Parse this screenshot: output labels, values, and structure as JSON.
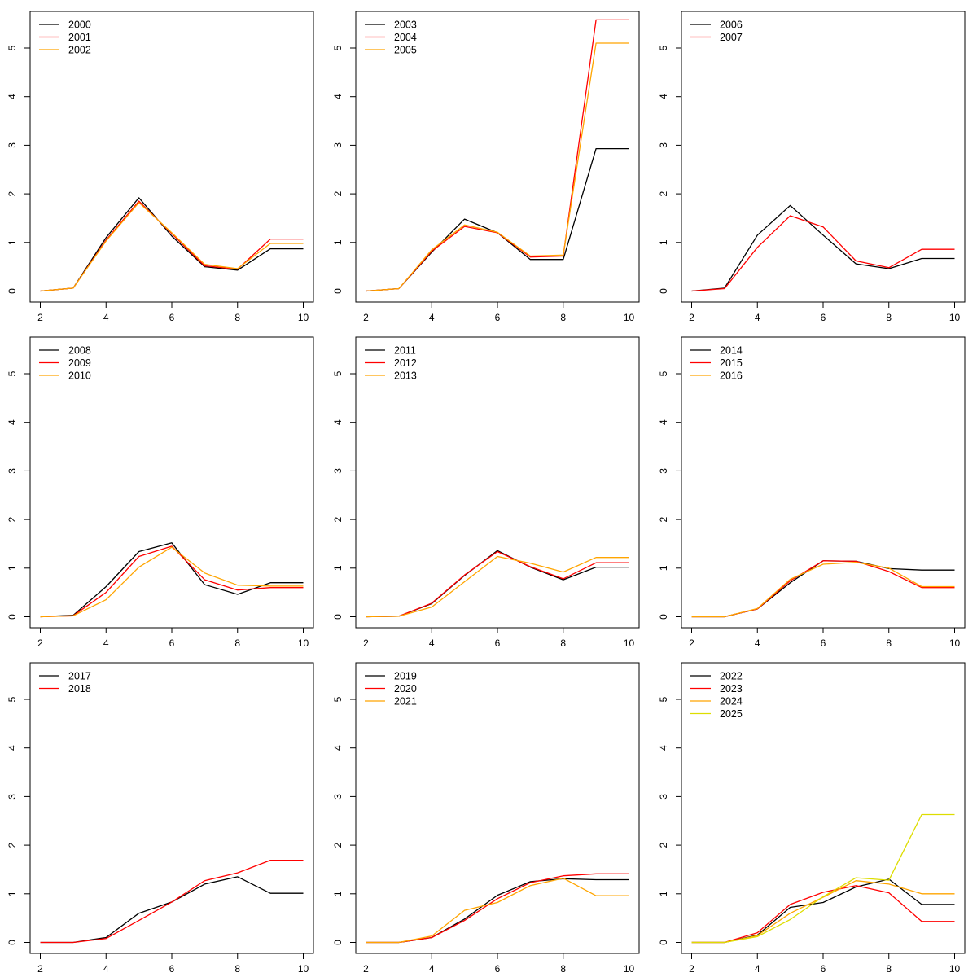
{
  "colors": {
    "black": "#000000",
    "red": "#ff0000",
    "orange": "#ffa500",
    "yellow": "#dddd00"
  },
  "chart_data": [
    {
      "type": "line",
      "x": [
        2,
        3,
        4,
        5,
        6,
        7,
        8,
        9,
        10
      ],
      "xlim": [
        2,
        10
      ],
      "ylim": [
        0,
        5.5
      ],
      "xticks": [
        "2",
        "4",
        "6",
        "8",
        "10"
      ],
      "yticks": [
        "0",
        "1",
        "2",
        "3",
        "4",
        "5"
      ],
      "legend_position": "top-left",
      "series": [
        {
          "name": "2000",
          "color": "#000000",
          "values": [
            0.0,
            0.06,
            1.1,
            1.92,
            1.13,
            0.5,
            0.43,
            0.87,
            0.87
          ]
        },
        {
          "name": "2001",
          "color": "#ff0000",
          "values": [
            0.0,
            0.06,
            1.05,
            1.85,
            1.18,
            0.52,
            0.45,
            1.07,
            1.07
          ]
        },
        {
          "name": "2002",
          "color": "#ffa500",
          "values": [
            0.0,
            0.06,
            1.03,
            1.82,
            1.2,
            0.55,
            0.46,
            0.98,
            0.98
          ]
        }
      ]
    },
    {
      "type": "line",
      "x": [
        2,
        3,
        4,
        5,
        6,
        7,
        8,
        9,
        10
      ],
      "xlim": [
        2,
        10
      ],
      "ylim": [
        0,
        5.5
      ],
      "xticks": [
        "2",
        "4",
        "6",
        "8",
        "10"
      ],
      "yticks": [
        "0",
        "1",
        "2",
        "3",
        "4",
        "5"
      ],
      "legend_position": "top-left",
      "series": [
        {
          "name": "2003",
          "color": "#000000",
          "values": [
            0.0,
            0.05,
            0.8,
            1.48,
            1.2,
            0.65,
            0.65,
            2.93,
            2.93
          ]
        },
        {
          "name": "2004",
          "color": "#ff0000",
          "values": [
            0.0,
            0.05,
            0.82,
            1.33,
            1.2,
            0.7,
            0.72,
            5.58,
            5.58
          ]
        },
        {
          "name": "2005",
          "color": "#ffa500",
          "values": [
            0.0,
            0.05,
            0.85,
            1.36,
            1.21,
            0.72,
            0.74,
            5.1,
            5.1
          ]
        }
      ]
    },
    {
      "type": "line",
      "x": [
        2,
        3,
        4,
        5,
        6,
        7,
        8,
        9,
        10
      ],
      "xlim": [
        2,
        10
      ],
      "ylim": [
        0,
        5.5
      ],
      "xticks": [
        "2",
        "4",
        "6",
        "8",
        "10"
      ],
      "yticks": [
        "0",
        "1",
        "2",
        "3",
        "4",
        "5"
      ],
      "legend_position": "top-left",
      "series": [
        {
          "name": "2006",
          "color": "#000000",
          "values": [
            0.0,
            0.06,
            1.15,
            1.76,
            1.15,
            0.56,
            0.46,
            0.67,
            0.67
          ]
        },
        {
          "name": "2007",
          "color": "#ff0000",
          "values": [
            0.0,
            0.05,
            0.9,
            1.55,
            1.32,
            0.62,
            0.48,
            0.86,
            0.86
          ]
        }
      ]
    },
    {
      "type": "line",
      "x": [
        2,
        3,
        4,
        5,
        6,
        7,
        8,
        9,
        10
      ],
      "xlim": [
        2,
        10
      ],
      "ylim": [
        0,
        5.5
      ],
      "xticks": [
        "2",
        "4",
        "6",
        "8",
        "10"
      ],
      "yticks": [
        "0",
        "1",
        "2",
        "3",
        "4",
        "5"
      ],
      "legend_position": "top-left",
      "series": [
        {
          "name": "2008",
          "color": "#000000",
          "values": [
            0.0,
            0.03,
            0.62,
            1.34,
            1.52,
            0.66,
            0.46,
            0.7,
            0.7
          ]
        },
        {
          "name": "2009",
          "color": "#ff0000",
          "values": [
            0.0,
            0.02,
            0.5,
            1.24,
            1.45,
            0.76,
            0.55,
            0.6,
            0.6
          ]
        },
        {
          "name": "2010",
          "color": "#ffa500",
          "values": [
            0.0,
            0.02,
            0.35,
            1.02,
            1.43,
            0.9,
            0.65,
            0.63,
            0.63
          ]
        }
      ]
    },
    {
      "type": "line",
      "x": [
        2,
        3,
        4,
        5,
        6,
        7,
        8,
        9,
        10
      ],
      "xlim": [
        2,
        10
      ],
      "ylim": [
        0,
        5.5
      ],
      "xticks": [
        "2",
        "4",
        "6",
        "8",
        "10"
      ],
      "yticks": [
        "0",
        "1",
        "2",
        "3",
        "4",
        "5"
      ],
      "legend_position": "top-left",
      "series": [
        {
          "name": "2011",
          "color": "#000000",
          "values": [
            0.0,
            0.01,
            0.27,
            0.85,
            1.36,
            1.02,
            0.76,
            1.02,
            1.02
          ]
        },
        {
          "name": "2012",
          "color": "#ff0000",
          "values": [
            0.0,
            0.01,
            0.28,
            0.86,
            1.34,
            1.03,
            0.78,
            1.11,
            1.11
          ]
        },
        {
          "name": "2013",
          "color": "#ffa500",
          "values": [
            0.0,
            0.01,
            0.2,
            0.72,
            1.24,
            1.1,
            0.92,
            1.22,
            1.22
          ]
        }
      ]
    },
    {
      "type": "line",
      "x": [
        2,
        3,
        4,
        5,
        6,
        7,
        8,
        9,
        10
      ],
      "xlim": [
        2,
        10
      ],
      "ylim": [
        0,
        5.5
      ],
      "xticks": [
        "2",
        "4",
        "6",
        "8",
        "10"
      ],
      "yticks": [
        "0",
        "1",
        "2",
        "3",
        "4",
        "5"
      ],
      "legend_position": "top-left",
      "series": [
        {
          "name": "2014",
          "color": "#000000",
          "values": [
            0.0,
            0.0,
            0.16,
            0.7,
            1.15,
            1.14,
            0.99,
            0.96,
            0.96
          ]
        },
        {
          "name": "2015",
          "color": "#ff0000",
          "values": [
            0.0,
            0.0,
            0.16,
            0.74,
            1.15,
            1.14,
            0.93,
            0.6,
            0.6
          ]
        },
        {
          "name": "2016",
          "color": "#ffa500",
          "values": [
            0.0,
            0.0,
            0.17,
            0.77,
            1.08,
            1.12,
            1.0,
            0.62,
            0.62
          ]
        }
      ]
    },
    {
      "type": "line",
      "x": [
        2,
        3,
        4,
        5,
        6,
        7,
        8,
        9,
        10
      ],
      "xlim": [
        2,
        10
      ],
      "ylim": [
        0,
        5.5
      ],
      "xticks": [
        "2",
        "4",
        "6",
        "8",
        "10"
      ],
      "yticks": [
        "0",
        "1",
        "2",
        "3",
        "4",
        "5"
      ],
      "legend_position": "top-left",
      "series": [
        {
          "name": "2017",
          "color": "#000000",
          "values": [
            0.0,
            0.0,
            0.1,
            0.6,
            0.83,
            1.2,
            1.35,
            1.01,
            1.01
          ]
        },
        {
          "name": "2018",
          "color": "#ff0000",
          "values": [
            0.0,
            0.0,
            0.08,
            0.45,
            0.83,
            1.27,
            1.43,
            1.69,
            1.69
          ]
        }
      ]
    },
    {
      "type": "line",
      "x": [
        2,
        3,
        4,
        5,
        6,
        7,
        8,
        9,
        10
      ],
      "xlim": [
        2,
        10
      ],
      "ylim": [
        0,
        5.5
      ],
      "xticks": [
        "2",
        "4",
        "6",
        "8",
        "10"
      ],
      "yticks": [
        "0",
        "1",
        "2",
        "3",
        "4",
        "5"
      ],
      "legend_position": "top-left",
      "series": [
        {
          "name": "2019",
          "color": "#000000",
          "values": [
            0.0,
            0.0,
            0.1,
            0.48,
            0.97,
            1.25,
            1.31,
            1.29,
            1.29
          ]
        },
        {
          "name": "2020",
          "color": "#ff0000",
          "values": [
            0.0,
            0.0,
            0.1,
            0.45,
            0.9,
            1.23,
            1.37,
            1.41,
            1.41
          ]
        },
        {
          "name": "2021",
          "color": "#ffa500",
          "values": [
            0.0,
            0.0,
            0.13,
            0.66,
            0.82,
            1.17,
            1.32,
            0.96,
            0.96
          ]
        }
      ]
    },
    {
      "type": "line",
      "x": [
        2,
        3,
        4,
        5,
        6,
        7,
        8,
        9,
        10
      ],
      "xlim": [
        2,
        10
      ],
      "ylim": [
        0,
        5.5
      ],
      "xticks": [
        "2",
        "4",
        "6",
        "8",
        "10"
      ],
      "yticks": [
        "0",
        "1",
        "2",
        "3",
        "4",
        "5"
      ],
      "legend_position": "top-left",
      "series": [
        {
          "name": "2022",
          "color": "#000000",
          "values": [
            0.0,
            0.0,
            0.15,
            0.72,
            0.82,
            1.14,
            1.3,
            0.78,
            0.78
          ]
        },
        {
          "name": "2023",
          "color": "#ff0000",
          "values": [
            0.0,
            0.0,
            0.2,
            0.78,
            1.03,
            1.17,
            1.02,
            0.43,
            0.43
          ]
        },
        {
          "name": "2024",
          "color": "#ffa500",
          "values": [
            0.0,
            0.0,
            0.14,
            0.6,
            0.93,
            1.27,
            1.2,
            1.0,
            1.0
          ]
        },
        {
          "name": "2025",
          "color": "#dddd00",
          "values": [
            0.0,
            0.0,
            0.12,
            0.47,
            0.94,
            1.33,
            1.28,
            2.63,
            2.63
          ]
        }
      ]
    }
  ]
}
